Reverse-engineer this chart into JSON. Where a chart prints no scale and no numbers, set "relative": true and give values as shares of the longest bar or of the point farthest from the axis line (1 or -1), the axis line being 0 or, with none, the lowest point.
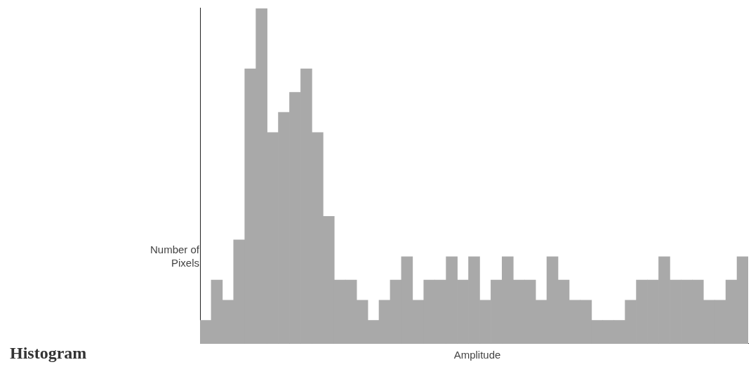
{
  "chart_data": {
    "type": "bar",
    "title": "Histogram",
    "xlabel": "Amplitude",
    "ylabel": "Number of Pixels",
    "relative": true,
    "color": "#a9a9a9",
    "categories": [
      null,
      null,
      null,
      null,
      null,
      null,
      null,
      null,
      null,
      null,
      null,
      null,
      null,
      null,
      null,
      null,
      null,
      null,
      null,
      null,
      null,
      null,
      null,
      null,
      null,
      null,
      null,
      null,
      null,
      null,
      null,
      null,
      null,
      null,
      null,
      null,
      null,
      null,
      null,
      null,
      null,
      null,
      null,
      null,
      null,
      null,
      null,
      null,
      null
    ],
    "values": [
      0.07,
      0.19,
      0.13,
      0.31,
      0.82,
      1,
      0.63,
      0.69,
      0.75,
      0.82,
      0.63,
      0.38,
      0.19,
      0.19,
      0.13,
      0.07,
      0.13,
      0.19,
      0.26,
      0.13,
      0.19,
      0.19,
      0.26,
      0.19,
      0.26,
      0.13,
      0.19,
      0.26,
      0.19,
      0.19,
      0.13,
      0.26,
      0.19,
      0.13,
      0.13,
      0.07,
      0.07,
      0.07,
      0.13,
      0.19,
      0.19,
      0.26,
      0.19,
      0.19,
      0.19,
      0.13,
      0.13,
      0.19,
      0.26
    ],
    "grid": false,
    "legend": false
  }
}
